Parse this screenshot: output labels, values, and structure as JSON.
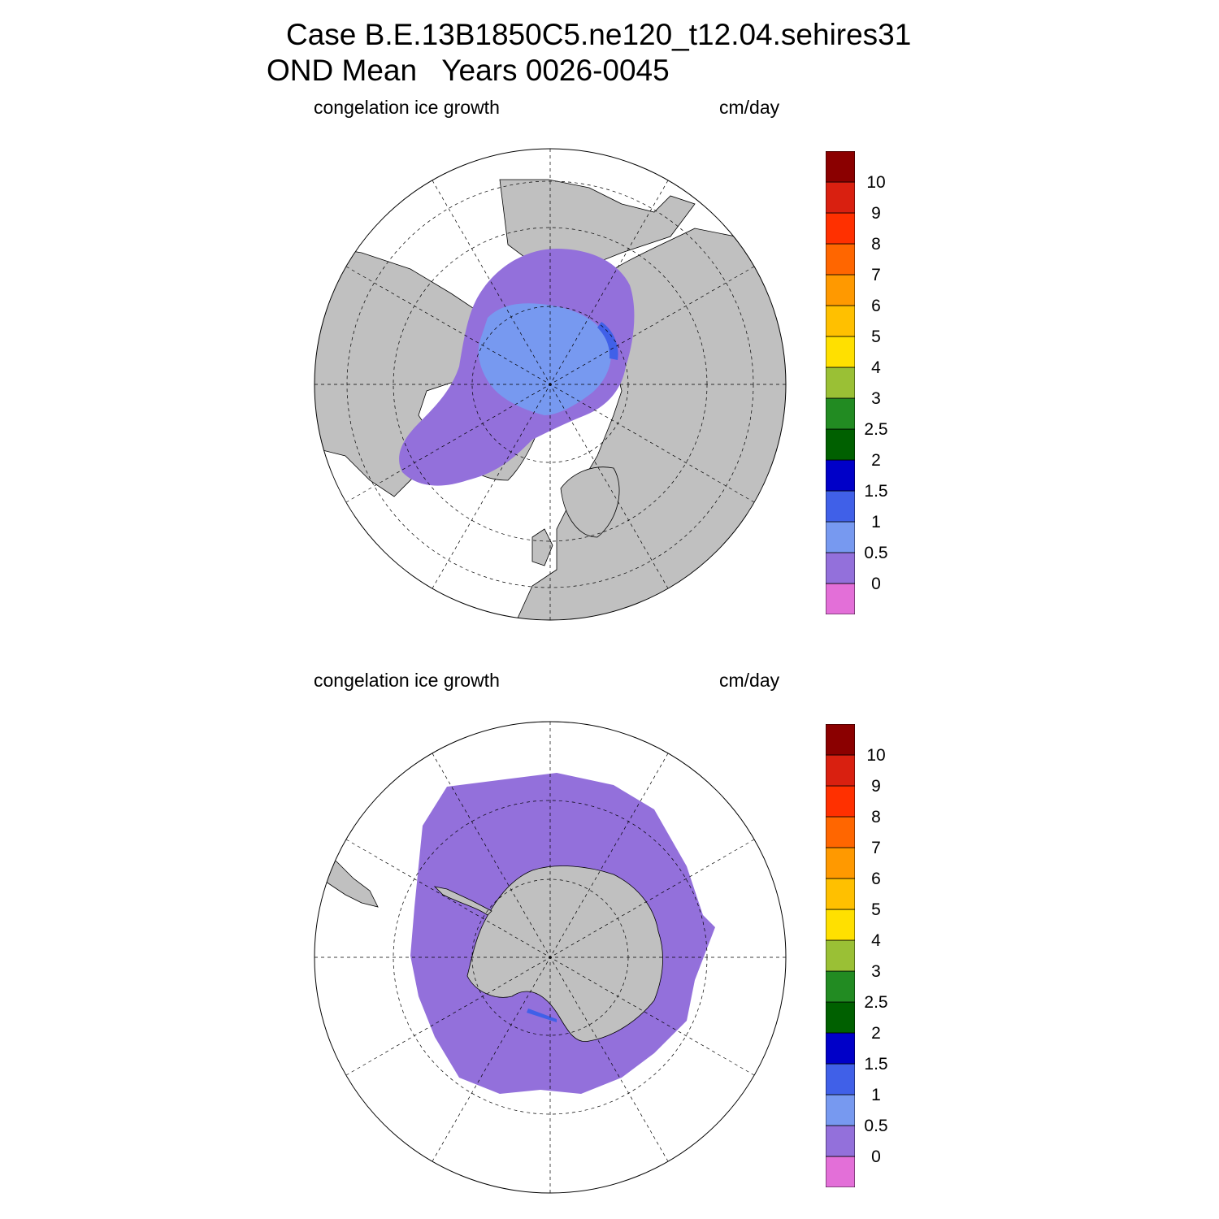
{
  "title": {
    "line1": "Case B.E.13B1850C5.ne120_t12.04.sehires31",
    "line2": "OND Mean   Years 0026-0045"
  },
  "panels": [
    {
      "id": "north",
      "variable": "congelation ice growth",
      "units": "cm/day",
      "hemisphere": "north"
    },
    {
      "id": "south",
      "variable": "congelation ice growth",
      "units": "cm/day",
      "hemisphere": "south"
    }
  ],
  "colorbar": {
    "labels": [
      "0",
      "0.5",
      "1",
      "1.5",
      "2",
      "2.5",
      "3",
      "4",
      "5",
      "6",
      "7",
      "8",
      "9",
      "10"
    ],
    "colors": [
      "#e36fd8",
      "#9370db",
      "#7799f0",
      "#4060e8",
      "#0000c8",
      "#006000",
      "#228b22",
      "#228b22",
      "#9ac035",
      "#ffe000",
      "#ffc000",
      "#ff9900",
      "#ff6600",
      "#ff3000",
      "#d92010",
      "#8b0000"
    ]
  },
  "map_colors": {
    "land": "#c0c0c0",
    "ocean": "#ffffff",
    "ice_low": "#9370db",
    "ice_mid": "#7799f0",
    "ice_high": "#4060e8"
  }
}
